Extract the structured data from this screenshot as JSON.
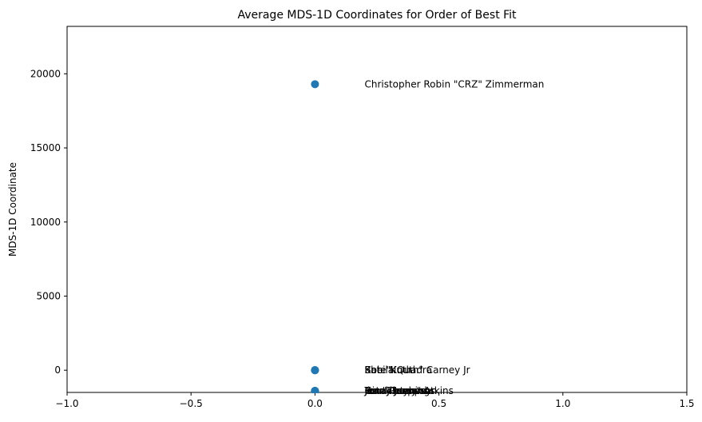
{
  "chart_data": {
    "type": "scatter",
    "title": "Average MDS-1D Coordinates for Order of Best Fit",
    "xlabel": "",
    "ylabel": "MDS-1D Coordinate",
    "xlim": [
      -1.0,
      1.5
    ],
    "ylim": [
      -1500,
      23200
    ],
    "xticks": [
      -1.0,
      -0.5,
      0.0,
      0.5,
      1.0,
      1.5
    ],
    "xtick_labels": [
      "−1.0",
      "−0.5",
      "0.0",
      "0.5",
      "1.0",
      "1.5"
    ],
    "yticks": [
      0,
      5000,
      10000,
      15000,
      20000
    ],
    "ytick_labels": [
      "0",
      "5000",
      "10000",
      "15000",
      "20000"
    ],
    "grid": false,
    "marker_color": "#1f77b4",
    "points": [
      {
        "x": 0,
        "y": 19300
      },
      {
        "x": 0,
        "y": 0
      },
      {
        "x": 0,
        "y": 0
      },
      {
        "x": 0,
        "y": 0
      },
      {
        "x": 0,
        "y": -1400
      },
      {
        "x": 0,
        "y": -1400
      },
      {
        "x": 0,
        "y": -1400
      },
      {
        "x": 0,
        "y": -1400
      },
      {
        "x": 0,
        "y": -1400
      },
      {
        "x": 0,
        "y": -1400
      }
    ],
    "annotations": [
      {
        "text": "Christopher Robin \"CRZ\" Zimmerman",
        "x": 0.2,
        "y": 19300
      },
      {
        "text": "Kate Nuth",
        "x": 0.2,
        "y": 0
      },
      {
        "text": "Sheila Quadra",
        "x": 0.2,
        "y": 0
      },
      {
        "text": "Bob \"Knuth\" Carney Jr",
        "x": 0.2,
        "y": 0
      },
      {
        "text": "Jenny Jennings",
        "x": 0.2,
        "y": -1400
      },
      {
        "text": "Frank Jaspers",
        "x": 0.2,
        "y": -1400
      },
      {
        "text": "Pete Peterson",
        "x": 0.2,
        "y": -1400
      },
      {
        "text": "Tom Thompson",
        "x": 0.2,
        "y": -1400
      },
      {
        "text": "Gina Gaylord",
        "x": 0.2,
        "y": -1400
      },
      {
        "text": "Jim \"Jimmy\" Atkins",
        "x": 0.2,
        "y": -1400
      }
    ]
  }
}
